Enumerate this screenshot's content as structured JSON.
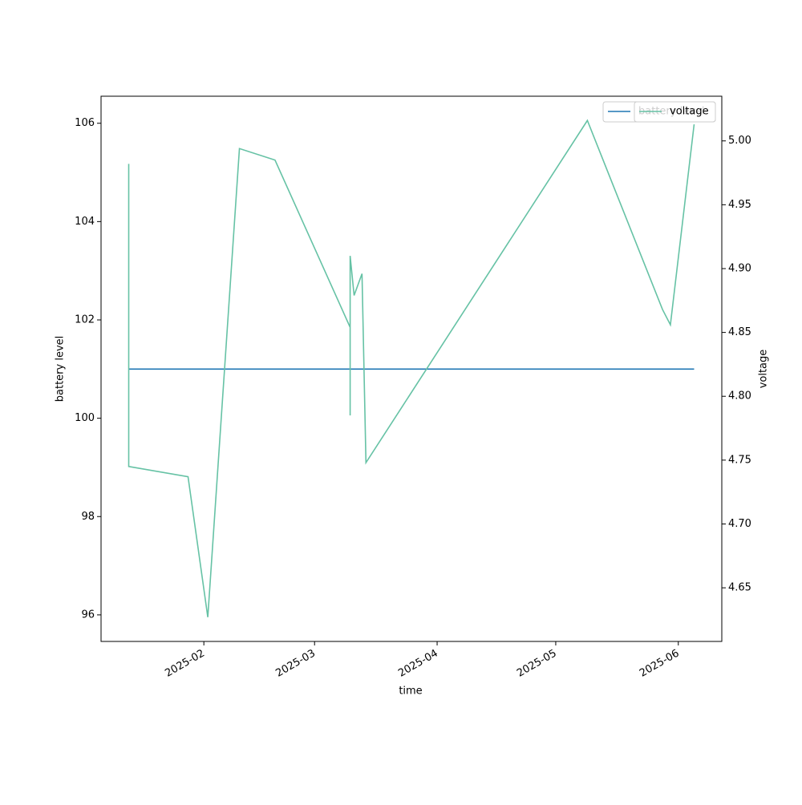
{
  "chart_data": {
    "type": "line",
    "x": [
      "2025-01-13",
      "2025-01-13",
      "2025-01-28",
      "2025-02-02",
      "2025-02-10",
      "2025-02-19",
      "2025-03-10",
      "2025-03-10",
      "2025-03-10",
      "2025-03-11",
      "2025-03-13",
      "2025-03-14",
      "2025-05-09",
      "2025-05-28",
      "2025-05-30",
      "2025-06-05"
    ],
    "series": [
      {
        "name": "battery level",
        "color": "#1f77b4",
        "values": [
          101,
          101,
          101,
          101,
          101,
          101,
          101,
          101,
          101,
          101,
          101,
          101,
          101,
          101,
          101,
          101
        ]
      },
      {
        "name": "voltage",
        "color": "#66c2a5",
        "axis": "y2",
        "values": [
          4.982,
          4.745,
          4.737,
          4.627,
          4.994,
          4.985,
          4.854,
          4.785,
          4.91,
          4.879,
          4.896,
          4.748,
          5.016,
          4.868,
          4.856,
          5.013
        ]
      }
    ],
    "xlabel": "time",
    "ylabel": "battery level",
    "y2label": "voltage",
    "xlim": [
      "2025-01-06",
      "2025-06-12"
    ],
    "xticks": [
      {
        "value": "2025-02-01",
        "label": "2025-02"
      },
      {
        "value": "2025-03-01",
        "label": "2025-03"
      },
      {
        "value": "2025-04-01",
        "label": "2025-04"
      },
      {
        "value": "2025-05-01",
        "label": "2025-05"
      },
      {
        "value": "2025-06-01",
        "label": "2025-06"
      }
    ],
    "ylim": [
      95.46,
      106.55
    ],
    "yticks": [
      96,
      98,
      100,
      102,
      104,
      106
    ],
    "y2lim": [
      4.608,
      5.035
    ],
    "y2ticks": [
      4.65,
      {
        "value": 4.7,
        "label": "4.70"
      },
      4.75,
      {
        "value": 4.8,
        "label": "4.80"
      },
      4.85,
      {
        "value": 4.9,
        "label": "4.90"
      },
      4.95,
      {
        "value": 5.0,
        "label": "5.00"
      }
    ],
    "legend": "upper right"
  }
}
